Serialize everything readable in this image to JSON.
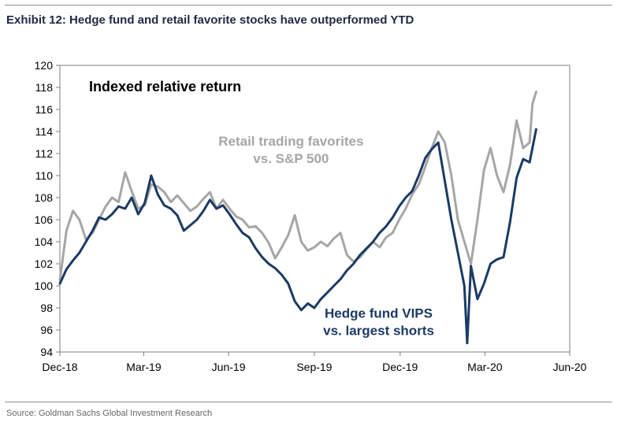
{
  "header": {
    "title": "Exhibit 12: Hedge fund and retail favorite stocks have outperformed YTD"
  },
  "footer": {
    "source": "Source: Goldman Sachs Global Investment Research"
  },
  "chart_data": {
    "type": "line",
    "title": "Indexed relative return",
    "xlabel": "",
    "ylabel": "",
    "ylim": [
      94,
      120
    ],
    "yticks": [
      94,
      96,
      98,
      100,
      102,
      104,
      106,
      108,
      110,
      112,
      114,
      116,
      118,
      120
    ],
    "xlim": [
      "2018-12-31",
      "2020-06-30"
    ],
    "xticks": [
      {
        "date": "2018-12-31",
        "label": "Dec-18"
      },
      {
        "date": "2019-03-31",
        "label": "Mar-19"
      },
      {
        "date": "2019-06-30",
        "label": "Jun-19"
      },
      {
        "date": "2019-09-30",
        "label": "Sep-19"
      },
      {
        "date": "2019-12-31",
        "label": "Dec-19"
      },
      {
        "date": "2020-03-31",
        "label": "Mar-20"
      },
      {
        "date": "2020-06-30",
        "label": "Jun-20"
      }
    ],
    "grid": false,
    "legend": "inline labels",
    "series": [
      {
        "name": "Retail trading favorites vs. S&P 500",
        "color": "#a6a6a6",
        "points": [
          [
            "2018-12-31",
            100.5
          ],
          [
            "2019-01-07",
            105.0
          ],
          [
            "2019-01-14",
            106.8
          ],
          [
            "2019-01-21",
            106.0
          ],
          [
            "2019-01-28",
            104.2
          ],
          [
            "2019-02-04",
            104.8
          ],
          [
            "2019-02-11",
            106.0
          ],
          [
            "2019-02-18",
            107.2
          ],
          [
            "2019-02-25",
            108.0
          ],
          [
            "2019-03-04",
            107.6
          ],
          [
            "2019-03-11",
            110.3
          ],
          [
            "2019-03-18",
            108.6
          ],
          [
            "2019-03-25",
            107.0
          ],
          [
            "2019-04-01",
            107.3
          ],
          [
            "2019-04-08",
            109.2
          ],
          [
            "2019-04-15",
            109.0
          ],
          [
            "2019-04-22",
            108.5
          ],
          [
            "2019-04-29",
            107.6
          ],
          [
            "2019-05-06",
            108.2
          ],
          [
            "2019-05-13",
            107.5
          ],
          [
            "2019-05-20",
            106.8
          ],
          [
            "2019-05-27",
            107.2
          ],
          [
            "2019-06-03",
            107.9
          ],
          [
            "2019-06-10",
            108.5
          ],
          [
            "2019-06-17",
            107.0
          ],
          [
            "2019-06-24",
            107.8
          ],
          [
            "2019-07-01",
            107.0
          ],
          [
            "2019-07-08",
            106.3
          ],
          [
            "2019-07-15",
            106.0
          ],
          [
            "2019-07-22",
            105.3
          ],
          [
            "2019-07-29",
            105.4
          ],
          [
            "2019-08-05",
            104.8
          ],
          [
            "2019-08-12",
            103.9
          ],
          [
            "2019-08-19",
            102.5
          ],
          [
            "2019-08-26",
            103.5
          ],
          [
            "2019-09-02",
            104.6
          ],
          [
            "2019-09-09",
            106.4
          ],
          [
            "2019-09-16",
            104.0
          ],
          [
            "2019-09-23",
            103.2
          ],
          [
            "2019-09-30",
            103.5
          ],
          [
            "2019-10-07",
            104.0
          ],
          [
            "2019-10-14",
            103.6
          ],
          [
            "2019-10-21",
            104.3
          ],
          [
            "2019-10-28",
            104.8
          ],
          [
            "2019-11-04",
            102.8
          ],
          [
            "2019-11-11",
            102.2
          ],
          [
            "2019-11-18",
            102.6
          ],
          [
            "2019-11-25",
            103.3
          ],
          [
            "2019-12-02",
            104.0
          ],
          [
            "2019-12-09",
            103.5
          ],
          [
            "2019-12-16",
            104.4
          ],
          [
            "2019-12-23",
            104.8
          ],
          [
            "2019-12-30",
            106.0
          ],
          [
            "2020-01-06",
            107.0
          ],
          [
            "2020-01-13",
            108.3
          ],
          [
            "2020-01-20",
            109.2
          ],
          [
            "2020-01-27",
            110.8
          ],
          [
            "2020-02-03",
            112.5
          ],
          [
            "2020-02-10",
            114.0
          ],
          [
            "2020-02-17",
            113.0
          ],
          [
            "2020-02-24",
            110.0
          ],
          [
            "2020-03-02",
            106.0
          ],
          [
            "2020-03-09",
            104.0
          ],
          [
            "2020-03-16",
            102.0
          ],
          [
            "2020-03-23",
            106.0
          ],
          [
            "2020-03-30",
            110.5
          ],
          [
            "2020-04-06",
            112.5
          ],
          [
            "2020-04-13",
            110.0
          ],
          [
            "2020-04-20",
            108.5
          ],
          [
            "2020-04-27",
            111.0
          ],
          [
            "2020-05-04",
            115.0
          ],
          [
            "2020-05-11",
            112.5
          ],
          [
            "2020-05-18",
            113.0
          ],
          [
            "2020-05-21",
            116.5
          ],
          [
            "2020-05-25",
            117.6
          ]
        ]
      },
      {
        "name": "Hedge fund VIPS vs. largest shorts",
        "color": "#1b3a64",
        "points": [
          [
            "2018-12-31",
            100.2
          ],
          [
            "2019-01-07",
            101.5
          ],
          [
            "2019-01-14",
            102.3
          ],
          [
            "2019-01-21",
            103.0
          ],
          [
            "2019-01-28",
            104.0
          ],
          [
            "2019-02-04",
            105.0
          ],
          [
            "2019-02-11",
            106.2
          ],
          [
            "2019-02-18",
            106.0
          ],
          [
            "2019-02-25",
            106.5
          ],
          [
            "2019-03-04",
            107.2
          ],
          [
            "2019-03-11",
            107.0
          ],
          [
            "2019-03-18",
            108.0
          ],
          [
            "2019-03-25",
            106.5
          ],
          [
            "2019-04-01",
            107.5
          ],
          [
            "2019-04-08",
            110.0
          ],
          [
            "2019-04-15",
            108.3
          ],
          [
            "2019-04-22",
            107.3
          ],
          [
            "2019-04-29",
            107.0
          ],
          [
            "2019-05-06",
            106.4
          ],
          [
            "2019-05-13",
            105.0
          ],
          [
            "2019-05-20",
            105.5
          ],
          [
            "2019-05-27",
            106.0
          ],
          [
            "2019-06-03",
            106.8
          ],
          [
            "2019-06-10",
            107.8
          ],
          [
            "2019-06-17",
            107.0
          ],
          [
            "2019-06-24",
            107.3
          ],
          [
            "2019-07-01",
            106.5
          ],
          [
            "2019-07-08",
            105.6
          ],
          [
            "2019-07-15",
            104.8
          ],
          [
            "2019-07-22",
            104.4
          ],
          [
            "2019-07-29",
            103.4
          ],
          [
            "2019-08-05",
            102.6
          ],
          [
            "2019-08-12",
            102.0
          ],
          [
            "2019-08-19",
            101.6
          ],
          [
            "2019-08-26",
            101.0
          ],
          [
            "2019-09-02",
            100.2
          ],
          [
            "2019-09-09",
            98.6
          ],
          [
            "2019-09-16",
            97.8
          ],
          [
            "2019-09-23",
            98.4
          ],
          [
            "2019-09-30",
            98.0
          ],
          [
            "2019-10-07",
            98.8
          ],
          [
            "2019-10-14",
            99.4
          ],
          [
            "2019-10-21",
            100.0
          ],
          [
            "2019-10-28",
            100.6
          ],
          [
            "2019-11-04",
            101.4
          ],
          [
            "2019-11-11",
            102.0
          ],
          [
            "2019-11-18",
            102.8
          ],
          [
            "2019-11-25",
            103.4
          ],
          [
            "2019-12-02",
            104.0
          ],
          [
            "2019-12-09",
            104.8
          ],
          [
            "2019-12-16",
            105.4
          ],
          [
            "2019-12-23",
            106.2
          ],
          [
            "2019-12-30",
            107.2
          ],
          [
            "2020-01-06",
            108.0
          ],
          [
            "2020-01-13",
            108.6
          ],
          [
            "2020-01-20",
            110.0
          ],
          [
            "2020-01-27",
            111.6
          ],
          [
            "2020-02-03",
            112.4
          ],
          [
            "2020-02-10",
            113.0
          ],
          [
            "2020-02-17",
            109.5
          ],
          [
            "2020-02-24",
            106.0
          ],
          [
            "2020-03-02",
            103.0
          ],
          [
            "2020-03-09",
            100.0
          ],
          [
            "2020-03-12",
            94.8
          ],
          [
            "2020-03-16",
            101.8
          ],
          [
            "2020-03-23",
            98.8
          ],
          [
            "2020-03-30",
            100.2
          ],
          [
            "2020-04-06",
            102.0
          ],
          [
            "2020-04-13",
            102.4
          ],
          [
            "2020-04-20",
            102.6
          ],
          [
            "2020-04-27",
            105.8
          ],
          [
            "2020-05-04",
            109.8
          ],
          [
            "2020-05-11",
            111.5
          ],
          [
            "2020-05-18",
            111.2
          ],
          [
            "2020-05-25",
            114.2
          ]
        ]
      }
    ],
    "annotations": [
      {
        "series": 0,
        "lines": [
          "Retail trading favorites",
          "vs. S&P 500"
        ],
        "color": "#a6a6a6",
        "at": [
          "2019-09-05",
          112.7
        ],
        "anchor": "middle"
      },
      {
        "series": 1,
        "lines": [
          "Hedge fund VIPS",
          "vs. largest shorts"
        ],
        "color": "#1b3a64",
        "at": [
          "2019-12-08",
          97.1
        ],
        "anchor": "middle"
      }
    ]
  }
}
